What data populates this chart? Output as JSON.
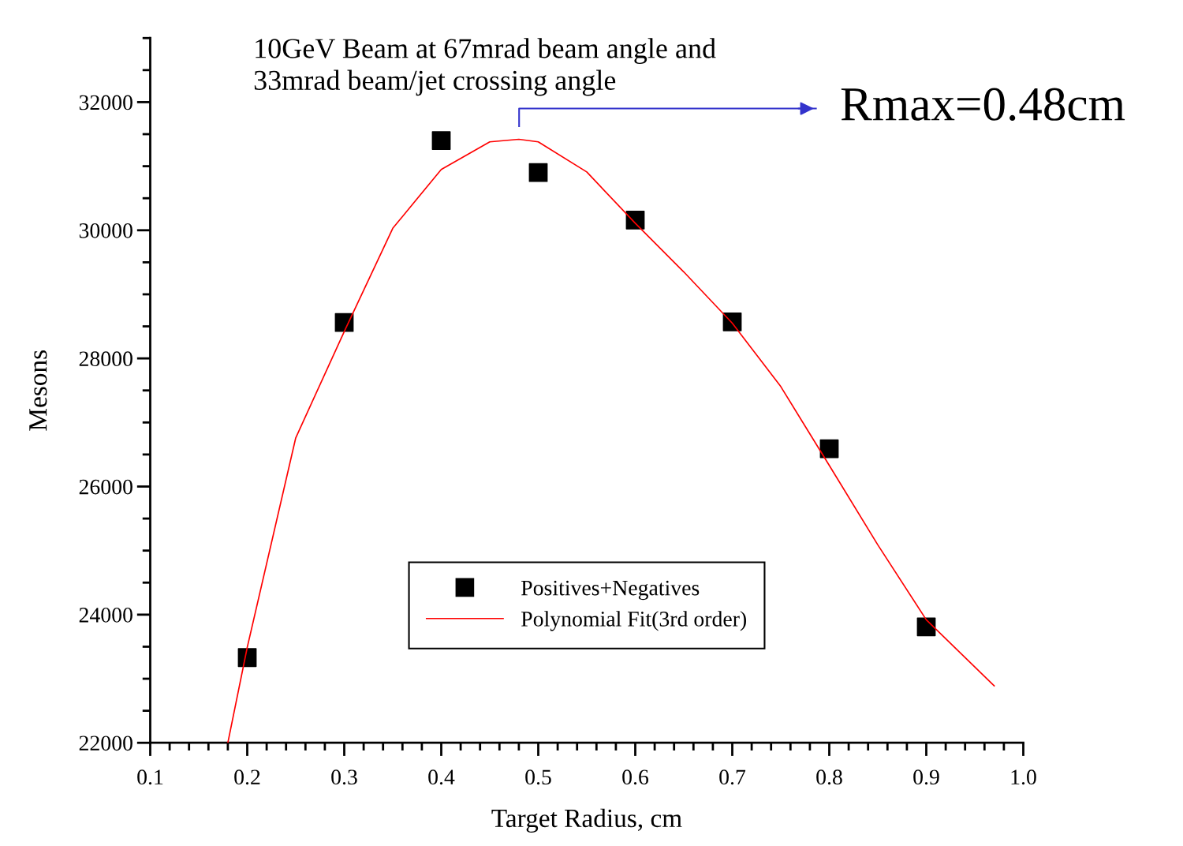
{
  "chart_data": {
    "type": "scatter",
    "title": "10GeV Beam at 67mrad beam angle and\n33mrad beam/jet crossing angle",
    "xlabel": "Target Radius, cm",
    "ylabel": "Mesons",
    "xlim": [
      0.1,
      1.0
    ],
    "xticks": [
      {
        "value": 0.1,
        "label": "0.1"
      },
      {
        "value": 0.2,
        "label": "0.2"
      },
      {
        "value": 0.3,
        "label": "0.3"
      },
      {
        "value": 0.4,
        "label": "0.4"
      },
      {
        "value": 0.5,
        "label": "0.5"
      },
      {
        "value": 0.6,
        "label": "0.6"
      },
      {
        "value": 0.7,
        "label": "0.7"
      },
      {
        "value": 0.8,
        "label": "0.8"
      },
      {
        "value": 0.9,
        "label": "0.9"
      },
      {
        "value": 1.0,
        "label": "1.0"
      }
    ],
    "ylim": [
      22000,
      33000
    ],
    "yticks": [
      22000,
      24000,
      26000,
      28000,
      30000,
      32000
    ],
    "grid": false,
    "legend": "bottom",
    "annotations": [
      "Rmax=0.48cm"
    ],
    "series": [
      {
        "name": "Positives+Negatives",
        "marker": "square",
        "color": "#000000",
        "x": [
          0.2,
          0.3,
          0.4,
          0.5,
          0.6,
          0.7,
          0.8,
          0.9
        ],
        "values": [
          23330,
          28560,
          31400,
          30900,
          30160,
          28570,
          26590,
          23810
        ]
      },
      {
        "name": "Polynomial Fit(3rd order)",
        "type": "line",
        "color": "#ff0000",
        "x": [
          0.18,
          0.2,
          0.25,
          0.3,
          0.35,
          0.4,
          0.45,
          0.48,
          0.5,
          0.55,
          0.6,
          0.65,
          0.7,
          0.75,
          0.8,
          0.85,
          0.9,
          0.97
        ],
        "values": [
          22000,
          23490,
          26760,
          28420,
          30030,
          30950,
          31380,
          31420,
          31380,
          30910,
          30110,
          29350,
          28550,
          27560,
          26330,
          25090,
          23920,
          22890
        ]
      }
    ]
  }
}
